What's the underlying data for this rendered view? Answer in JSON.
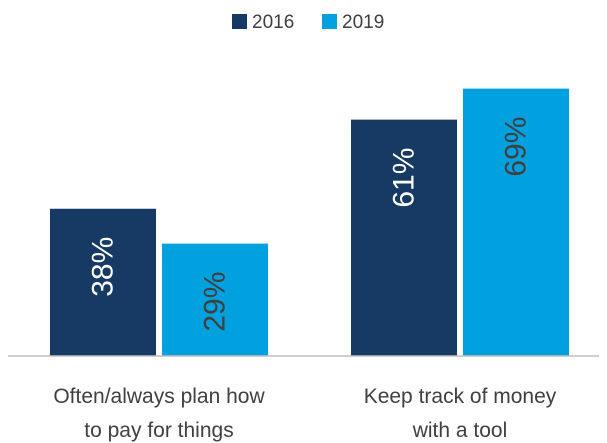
{
  "chart_data": {
    "type": "bar",
    "categories": [
      [
        "Often/always plan how",
        "to pay for things"
      ],
      [
        "Keep track of money",
        "with a tool"
      ]
    ],
    "series": [
      {
        "name": "2016",
        "values": [
          38,
          61
        ],
        "labels": [
          "38%",
          "61%"
        ],
        "color": "#163a63",
        "label_color": "#ffffff"
      },
      {
        "name": "2019",
        "values": [
          29,
          69
        ],
        "labels": [
          "29%",
          "69%"
        ],
        "color": "#00a1de",
        "label_color": "#404040"
      }
    ],
    "ylim": [
      0,
      80
    ],
    "grid": false,
    "legend_position": "top-center",
    "data_label_orientation": "vertical",
    "axis_color": "#bfbfbf"
  }
}
